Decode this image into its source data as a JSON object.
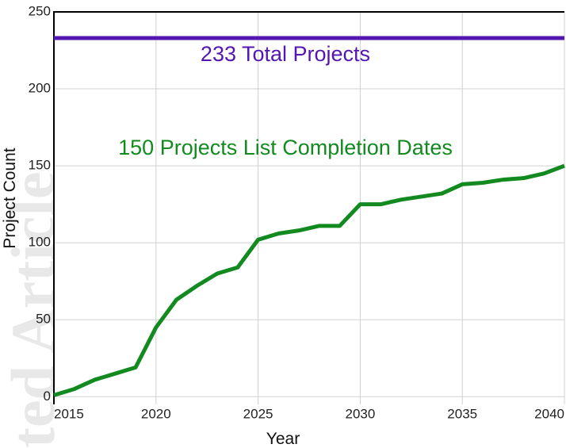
{
  "chart_data": {
    "type": "line",
    "watermark": "ted Article",
    "xlabel": "Year",
    "ylabel": "Project Count",
    "x": [
      2015,
      2016,
      2017,
      2018,
      2019,
      2020,
      2021,
      2022,
      2023,
      2024,
      2025,
      2026,
      2027,
      2028,
      2029,
      2030,
      2031,
      2032,
      2033,
      2034,
      2035,
      2036,
      2037,
      2038,
      2039,
      2040
    ],
    "series": [
      {
        "color": "#138a1f",
        "values": [
          1,
          5,
          11,
          15,
          19,
          45,
          63,
          72,
          80,
          84,
          102,
          106,
          108,
          111,
          111,
          125,
          125,
          128,
          130,
          132,
          138,
          139,
          141,
          142,
          145,
          150
        ]
      }
    ],
    "reference_line": {
      "value": 233,
      "color": "#5316b0",
      "label": "233 Total Projects"
    },
    "annotation": {
      "text": "150 Projects List Completion Dates",
      "color": "#138a1f"
    },
    "xlim": [
      2015,
      2040
    ],
    "ylim": [
      -5,
      250
    ],
    "xticks": [
      2015,
      2020,
      2025,
      2030,
      2035,
      2040
    ],
    "yticks": [
      0,
      50,
      100,
      150,
      200,
      250
    ],
    "grid": true
  }
}
